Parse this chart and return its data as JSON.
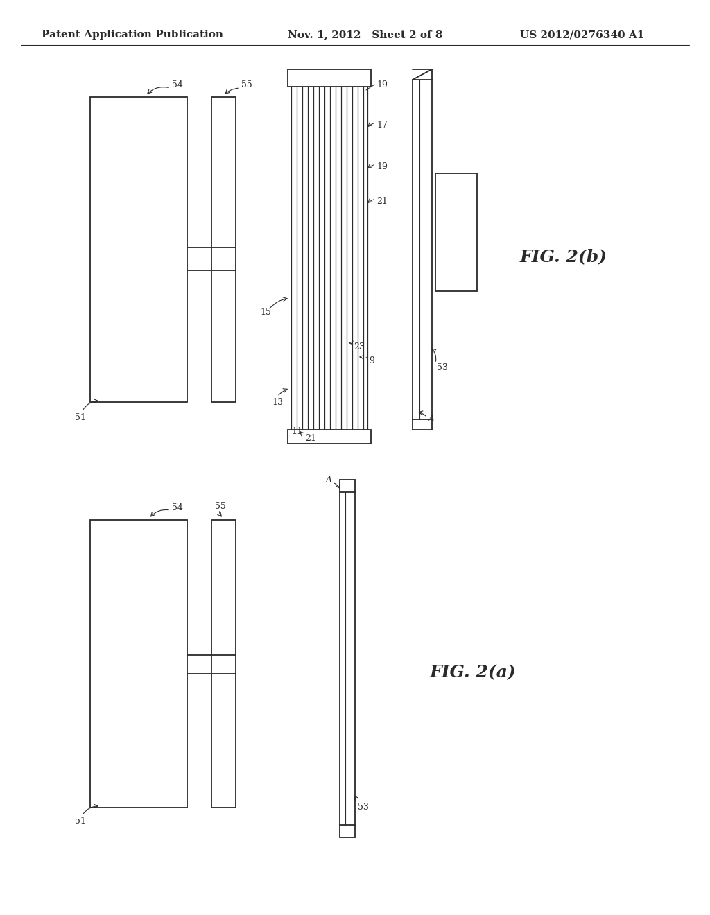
{
  "bg_color": "#ffffff",
  "line_color": "#2a2a2a",
  "header_text_left": "Patent Application Publication",
  "header_text_mid": "Nov. 1, 2012   Sheet 2 of 8",
  "header_text_right": "US 2012/0276340 A1",
  "fig2b_label": "FIG. 2(b)",
  "fig2a_label": "FIG. 2(a)"
}
